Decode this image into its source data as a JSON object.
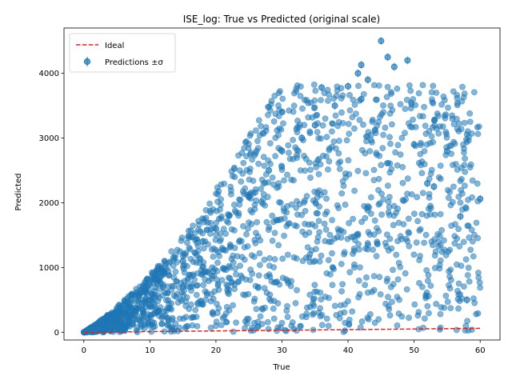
{
  "chart_data": {
    "type": "scatter",
    "title": "ISE_log: True vs Predicted (original scale)",
    "xlabel": "True",
    "ylabel": "Predicted",
    "xlim": [
      -3,
      63
    ],
    "ylim": [
      -120,
      4700
    ],
    "xticks": [
      0,
      10,
      20,
      30,
      40,
      50,
      60
    ],
    "yticks": [
      0,
      1000,
      2000,
      3000,
      4000
    ],
    "grid": false,
    "legend_position": "top-left",
    "series": [
      {
        "name": "Ideal",
        "kind": "line",
        "style": "dashed",
        "color": "#d62728",
        "x": [
          0,
          60
        ],
        "y": [
          0,
          60
        ]
      },
      {
        "name": "Predictions ±σ",
        "kind": "errorbar-scatter",
        "color": "#1f77b4",
        "description_of_cloud": "dense cloud of points rising from (0,0) with spread growing with True value",
        "x": [
          0.1,
          0.5,
          1.0,
          2.0,
          3.0,
          5.0,
          8.0,
          10.0,
          12.0,
          15.0,
          18.0,
          20.0,
          22.0,
          25.0,
          28.0,
          30.0,
          33.0,
          35.0,
          38.0,
          40.0,
          42.0,
          45.0,
          47.0,
          50.0,
          52.0,
          55.0,
          58.0,
          60.0,
          46.0,
          42.0,
          41.5,
          43.0,
          36.0,
          49.0,
          57.0,
          53.0
        ],
        "y": [
          0,
          5,
          10,
          30,
          60,
          150,
          350,
          500,
          700,
          1100,
          1400,
          1600,
          1800,
          2100,
          2500,
          2800,
          3000,
          3200,
          3500,
          3800,
          3600,
          4500,
          4100,
          2900,
          2300,
          2800,
          500,
          2060,
          4250,
          4130,
          4000,
          3900,
          3780,
          4200,
          1790,
          2250
        ]
      }
    ]
  },
  "legend": {
    "ideal_label": "Ideal",
    "predictions_label": "Predictions ±σ"
  }
}
